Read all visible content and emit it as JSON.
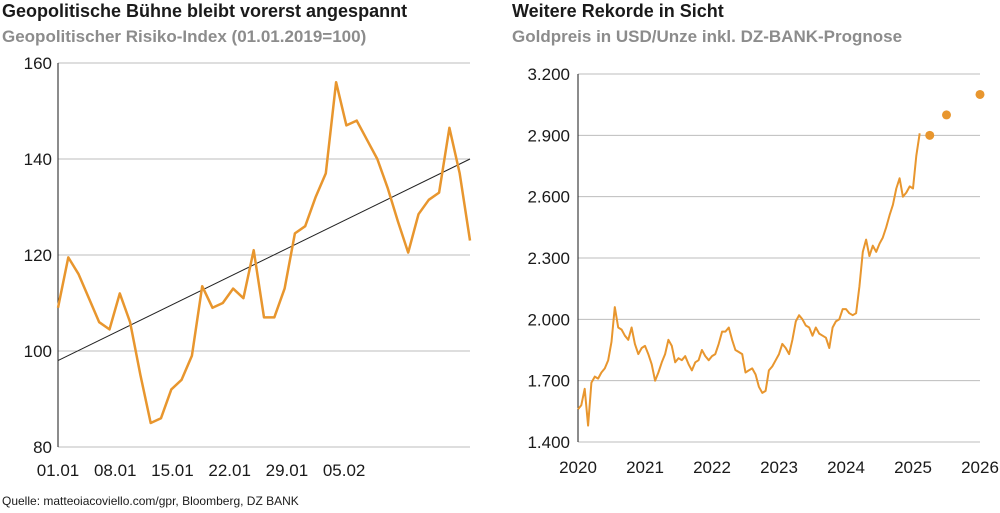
{
  "source": "Quelle: matteoiacoviello.com/gpr, Bloomberg, DZ BANK",
  "chart_data": [
    {
      "type": "line",
      "title": "Geopolitische Bühne bleibt vorerst angespannt",
      "subtitle": "Geopolitischer Risiko-Index (01.01.2019=100)",
      "ylim": [
        80,
        160
      ],
      "yticks": [
        "80",
        "100",
        "120",
        "140",
        "160"
      ],
      "xticks": [
        "01.01",
        "08.01",
        "15.01",
        "22.01",
        "29.01",
        "05.02"
      ],
      "grid": true,
      "colors": {
        "series": "#E8962E",
        "trend": "#222222",
        "grid": "#bdbdbd"
      },
      "series": [
        {
          "values": [
            109,
            119.5,
            116,
            111,
            106,
            104.5,
            112,
            106,
            95,
            85,
            86,
            92,
            94,
            99,
            113.5,
            109,
            110,
            113,
            111,
            121,
            107,
            107,
            113,
            124.5,
            126,
            132,
            137,
            156,
            147,
            148,
            144,
            140,
            134,
            127,
            120.5,
            128.5,
            131.5,
            133,
            146.5,
            137,
            123
          ]
        }
      ],
      "trendline": [
        98,
        140
      ]
    },
    {
      "type": "line",
      "title": "Weitere Rekorde in Sicht",
      "subtitle": "Goldpreis in USD/Unze inkl. DZ-BANK-Prognose",
      "ylim": [
        1400,
        3200
      ],
      "yticks": [
        "1.400",
        "1.700",
        "2.000",
        "2.300",
        "2.600",
        "2.900",
        "3.200"
      ],
      "xticks": [
        "2020",
        "2021",
        "2022",
        "2023",
        "2024",
        "2025",
        "2026"
      ],
      "grid": true,
      "colors": {
        "series": "#E8962E",
        "forecast": "#E8962E",
        "grid": "#bdbdbd"
      },
      "series": [
        {
          "x": [
            2020.0,
            2020.05,
            2020.1,
            2020.15,
            2020.2,
            2020.25,
            2020.3,
            2020.35,
            2020.4,
            2020.45,
            2020.5,
            2020.55,
            2020.6,
            2020.65,
            2020.7,
            2020.75,
            2020.8,
            2020.85,
            2020.9,
            2020.95,
            2021.0,
            2021.05,
            2021.1,
            2021.15,
            2021.2,
            2021.25,
            2021.3,
            2021.35,
            2021.4,
            2021.45,
            2021.5,
            2021.55,
            2021.6,
            2021.65,
            2021.7,
            2021.75,
            2021.8,
            2021.85,
            2021.9,
            2021.95,
            2022.0,
            2022.05,
            2022.1,
            2022.15,
            2022.2,
            2022.25,
            2022.3,
            2022.35,
            2022.4,
            2022.45,
            2022.5,
            2022.55,
            2022.6,
            2022.65,
            2022.7,
            2022.75,
            2022.8,
            2022.85,
            2022.9,
            2022.95,
            2023.0,
            2023.05,
            2023.1,
            2023.15,
            2023.2,
            2023.25,
            2023.3,
            2023.35,
            2023.4,
            2023.45,
            2023.5,
            2023.55,
            2023.6,
            2023.65,
            2023.7,
            2023.75,
            2023.8,
            2023.85,
            2023.9,
            2023.95,
            2024.0,
            2024.05,
            2024.1,
            2024.15,
            2024.2,
            2024.25,
            2024.3,
            2024.35,
            2024.4,
            2024.45,
            2024.5,
            2024.55,
            2024.6,
            2024.65,
            2024.7,
            2024.75,
            2024.8,
            2024.85,
            2024.9,
            2024.95,
            2025.0,
            2025.05,
            2025.1
          ],
          "values": [
            1560,
            1580,
            1660,
            1480,
            1690,
            1720,
            1710,
            1740,
            1760,
            1800,
            1890,
            2060,
            1960,
            1950,
            1920,
            1900,
            1960,
            1880,
            1830,
            1860,
            1870,
            1830,
            1780,
            1700,
            1740,
            1790,
            1830,
            1900,
            1870,
            1790,
            1810,
            1800,
            1820,
            1780,
            1750,
            1790,
            1800,
            1850,
            1820,
            1800,
            1820,
            1830,
            1880,
            1940,
            1940,
            1960,
            1900,
            1850,
            1840,
            1830,
            1740,
            1750,
            1760,
            1730,
            1670,
            1640,
            1650,
            1750,
            1770,
            1800,
            1830,
            1880,
            1860,
            1830,
            1900,
            1990,
            2020,
            2000,
            1970,
            1960,
            1920,
            1960,
            1930,
            1920,
            1910,
            1860,
            1960,
            1990,
            2000,
            2050,
            2050,
            2030,
            2020,
            2030,
            2160,
            2330,
            2390,
            2310,
            2360,
            2330,
            2370,
            2400,
            2450,
            2510,
            2560,
            2640,
            2690,
            2600,
            2620,
            2650,
            2640,
            2800,
            2910
          ]
        }
      ],
      "forecast": {
        "x": [
          2025.25,
          2025.5,
          2026.0
        ],
        "values": [
          2900,
          3000,
          3100
        ]
      }
    }
  ]
}
